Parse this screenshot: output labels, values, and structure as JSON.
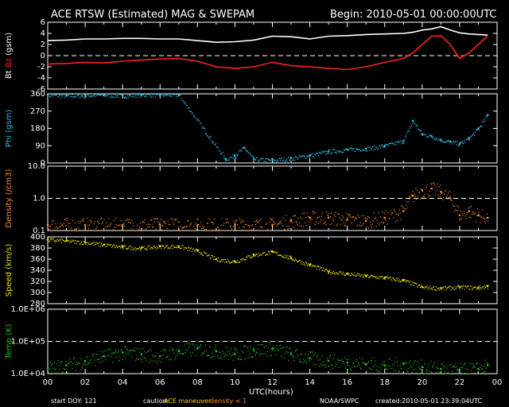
{
  "header": {
    "title": "ACE RTSW (Estimated) MAG & SWEPAM",
    "begin": "Begin: 2010-05-01 00:00:00UTC"
  },
  "footer": {
    "start_doy": "start DOY: 121",
    "caution_label": "caution:",
    "caution_maneuver": "ACE maneuver",
    "caution_density": "density < 1",
    "source": "NOAA/SWPC",
    "created": "created:2010-05-01 23:39:04UTC"
  },
  "colors": {
    "bt": "#ffffff",
    "bz": "#ff2020",
    "phi": "#30b8e0",
    "density": "#ff8c20",
    "speed": "#e8e000",
    "temp": "#20c020",
    "caution_maneuver": "#ffd000",
    "caution_density": "#ff8c20"
  },
  "chart_data": [
    {
      "type": "line",
      "panel": "mag_bt_bz",
      "ylabel_parts": [
        "Bt",
        "Bz",
        "(gsm)"
      ],
      "ylim": [
        -6,
        6
      ],
      "yticks": [
        "6",
        "4",
        "2",
        "0",
        "-2",
        "-4",
        "-6"
      ],
      "reference_line": 0,
      "series": [
        {
          "name": "Bt",
          "color": "#ffffff",
          "x": [
            0,
            1,
            2,
            3,
            4,
            5,
            6,
            7,
            8,
            9,
            10,
            11,
            12,
            13,
            14,
            15,
            16,
            17,
            18,
            19,
            19.5,
            20,
            20.5,
            21,
            21.5,
            22,
            22.5,
            23,
            23.5
          ],
          "y": [
            2.7,
            2.8,
            3.0,
            3.0,
            3.1,
            3.1,
            3.0,
            3.0,
            2.7,
            2.4,
            2.5,
            2.8,
            3.5,
            3.4,
            3.0,
            3.5,
            3.6,
            3.8,
            3.9,
            4.0,
            4.2,
            4.6,
            4.8,
            5.2,
            4.6,
            4.1,
            3.9,
            3.8,
            3.7
          ]
        },
        {
          "name": "Bz",
          "color": "#ff2020",
          "x": [
            0,
            1,
            2,
            3,
            4,
            5,
            6,
            7,
            8,
            9,
            10,
            11,
            12,
            13,
            14,
            15,
            16,
            17,
            18,
            19,
            19.5,
            20,
            20.5,
            21,
            21.5,
            22,
            22.5,
            23,
            23.5
          ],
          "y": [
            -1.5,
            -1.4,
            -1.2,
            -1.3,
            -1.0,
            -0.8,
            -0.6,
            -0.5,
            -1.0,
            -2.0,
            -2.3,
            -2.0,
            -1.2,
            -1.8,
            -2.0,
            -2.3,
            -2.5,
            -2.0,
            -1.2,
            -0.5,
            0.5,
            2.0,
            3.5,
            3.6,
            2.0,
            -0.5,
            0.5,
            2.0,
            3.6
          ]
        }
      ]
    },
    {
      "type": "scatter",
      "panel": "phi",
      "ylabel": "Phi (gsm)",
      "ylim": [
        0,
        360
      ],
      "yticks": [
        "360",
        "270",
        "180",
        "90",
        "0"
      ],
      "series": [
        {
          "name": "Phi",
          "color": "#30b8e0",
          "x": [
            0,
            1,
            2,
            3,
            4,
            5,
            6,
            7,
            9.5,
            10,
            10.5,
            11,
            12,
            13,
            14,
            15,
            16,
            17,
            18,
            19,
            19.5,
            20,
            20.5,
            21,
            21.5,
            22,
            22.5,
            23,
            23.5
          ],
          "y": [
            355,
            350,
            352,
            355,
            350,
            355,
            355,
            355,
            20,
            40,
            80,
            20,
            15,
            25,
            40,
            60,
            70,
            75,
            90,
            115,
            220,
            150,
            140,
            120,
            110,
            100,
            130,
            180,
            250
          ]
        }
      ]
    },
    {
      "type": "scatter",
      "panel": "density",
      "ylabel": "Density (/cm3)",
      "ylim": [
        0.1,
        10
      ],
      "scale": "log",
      "yticks": [
        "10.0",
        "1.0",
        "0.1"
      ],
      "reference_line": 1.0,
      "series": [
        {
          "name": "Density",
          "color": "#ff8c20",
          "x": [
            0,
            2,
            4,
            6,
            8,
            10,
            12,
            13,
            14,
            15,
            16,
            17,
            18,
            19,
            19.5,
            20,
            20.5,
            21,
            21.5,
            22,
            22.5,
            23,
            23.5
          ],
          "y": [
            0.15,
            0.15,
            0.15,
            0.15,
            0.15,
            0.15,
            0.15,
            0.2,
            0.25,
            0.25,
            0.22,
            0.2,
            0.25,
            0.4,
            1.2,
            1.8,
            2.0,
            1.6,
            1.0,
            0.3,
            0.4,
            0.3,
            0.25
          ]
        }
      ]
    },
    {
      "type": "scatter",
      "panel": "speed",
      "ylabel": "Speed (km/s)",
      "ylim": [
        280,
        400
      ],
      "yticks": [
        "400",
        "380",
        "360",
        "340",
        "320",
        "300",
        "280"
      ],
      "series": [
        {
          "name": "Speed",
          "color": "#e8e000",
          "x": [
            0,
            1,
            2,
            3,
            4,
            5,
            6,
            7,
            8,
            9,
            10,
            11,
            12,
            13,
            14,
            15,
            16,
            17,
            18,
            19,
            20,
            21,
            22,
            23,
            23.5
          ],
          "y": [
            395,
            393,
            390,
            386,
            382,
            380,
            383,
            383,
            375,
            360,
            356,
            368,
            373,
            362,
            350,
            338,
            334,
            330,
            327,
            322,
            310,
            308,
            310,
            309,
            312
          ]
        }
      ]
    },
    {
      "type": "scatter",
      "panel": "temp",
      "ylabel": "Temp (K)",
      "ylim": [
        10000,
        1000000
      ],
      "scale": "log",
      "yticks": [
        "1.0E+06",
        "1.0E+05",
        "1.0E+04"
      ],
      "reference_line": 100000,
      "xlabel": "UTC(hours)",
      "xticks": [
        "00",
        "02",
        "04",
        "06",
        "08",
        "10",
        "12",
        "14",
        "16",
        "18",
        "20",
        "22",
        "00"
      ],
      "series": [
        {
          "name": "Temp",
          "color": "#20c020",
          "x": [
            0,
            1,
            2,
            3,
            4,
            5,
            6,
            7,
            8,
            9,
            10,
            11,
            12,
            13,
            14,
            15,
            16,
            17,
            18,
            19,
            20,
            21,
            22,
            23,
            23.5
          ],
          "y": [
            15000,
            18000,
            25000,
            35000,
            45000,
            40000,
            35000,
            50000,
            60000,
            50000,
            40000,
            55000,
            60000,
            40000,
            30000,
            25000,
            22000,
            20000,
            18000,
            20000,
            16000,
            14000,
            13000,
            14000,
            18000
          ]
        }
      ]
    }
  ]
}
